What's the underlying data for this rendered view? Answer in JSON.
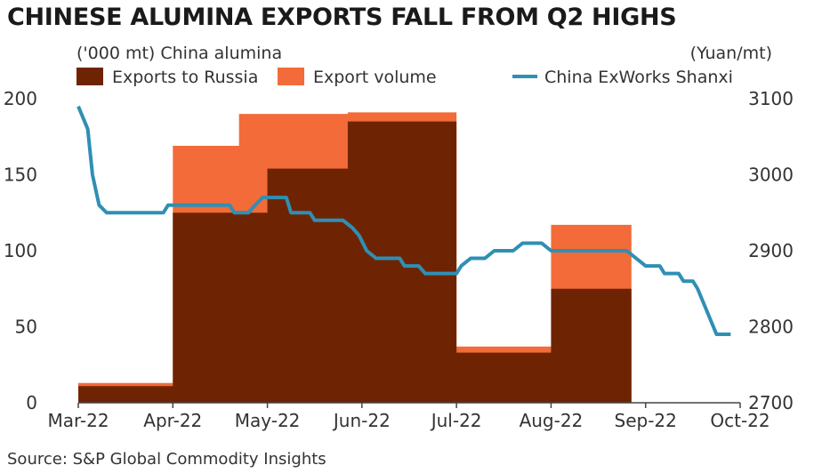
{
  "title": "CHINESE ALUMINA EXPORTS FALL FROM Q2 HIGHS",
  "source": "Source: S&P Global Commodity Insights",
  "chart_data": {
    "type": "bar+line",
    "left_axis_label": "('000 mt) China alumina",
    "right_axis_label": "(Yuan/mt)",
    "y_left": {
      "min": 0,
      "max": 200,
      "ticks": [
        0,
        50,
        100,
        150,
        200
      ]
    },
    "y_right": {
      "min": 2700,
      "max": 3100,
      "ticks": [
        2700,
        2800,
        2900,
        3000,
        3100
      ]
    },
    "x_ticks": [
      "Mar-22",
      "Apr-22",
      "May-22",
      "Jun-22",
      "Jul-22",
      "Aug-22",
      "Sep-22",
      "Oct-22"
    ],
    "grid": false,
    "legend": {
      "placement": "top"
    },
    "colors": {
      "russia": "#6e2403",
      "export": "#f26b38",
      "price": "#2f8fb4"
    },
    "series": [
      {
        "name": "Exports to Russia",
        "type": "step-area",
        "points": [
          {
            "x": 0,
            "y": 11
          },
          {
            "x": 0.85,
            "y": 11
          },
          {
            "x": 1,
            "y": 125
          },
          {
            "x": 2,
            "y": 154
          },
          {
            "x": 2.85,
            "y": 185
          },
          {
            "x": 4,
            "y": 33
          },
          {
            "x": 5,
            "y": 75
          }
        ],
        "end_x": 5.85
      },
      {
        "name": "Export volume",
        "type": "step-area",
        "points": [
          {
            "x": 0,
            "y": 13
          },
          {
            "x": 0.85,
            "y": 13
          },
          {
            "x": 1,
            "y": 169
          },
          {
            "x": 1.7,
            "y": 190
          },
          {
            "x": 2.85,
            "y": 191
          },
          {
            "x": 4,
            "y": 37
          },
          {
            "x": 5,
            "y": 117
          }
        ],
        "end_x": 5.85
      },
      {
        "name": "China ExWorks Shanxi",
        "type": "line",
        "axis": "right",
        "points": [
          [
            0,
            3090
          ],
          [
            0.1,
            3060
          ],
          [
            0.15,
            3000
          ],
          [
            0.22,
            2960
          ],
          [
            0.3,
            2950
          ],
          [
            0.9,
            2950
          ],
          [
            0.95,
            2960
          ],
          [
            1.6,
            2960
          ],
          [
            1.65,
            2950
          ],
          [
            1.8,
            2950
          ],
          [
            1.87,
            2960
          ],
          [
            1.95,
            2970
          ],
          [
            2.2,
            2970
          ],
          [
            2.25,
            2950
          ],
          [
            2.45,
            2950
          ],
          [
            2.5,
            2940
          ],
          [
            2.8,
            2940
          ],
          [
            2.9,
            2930
          ],
          [
            2.97,
            2920
          ],
          [
            3.05,
            2900
          ],
          [
            3.15,
            2890
          ],
          [
            3.4,
            2890
          ],
          [
            3.45,
            2880
          ],
          [
            3.6,
            2880
          ],
          [
            3.67,
            2870
          ],
          [
            4.0,
            2870
          ],
          [
            4.05,
            2880
          ],
          [
            4.15,
            2890
          ],
          [
            4.3,
            2890
          ],
          [
            4.4,
            2900
          ],
          [
            4.6,
            2900
          ],
          [
            4.7,
            2910
          ],
          [
            4.9,
            2910
          ],
          [
            5.0,
            2900
          ],
          [
            5.8,
            2900
          ],
          [
            5.9,
            2890
          ],
          [
            6.0,
            2880
          ],
          [
            6.15,
            2880
          ],
          [
            6.2,
            2870
          ],
          [
            6.35,
            2870
          ],
          [
            6.4,
            2860
          ],
          [
            6.5,
            2860
          ],
          [
            6.55,
            2850
          ],
          [
            6.65,
            2820
          ],
          [
            6.75,
            2790
          ],
          [
            6.9,
            2790
          ]
        ]
      }
    ]
  }
}
